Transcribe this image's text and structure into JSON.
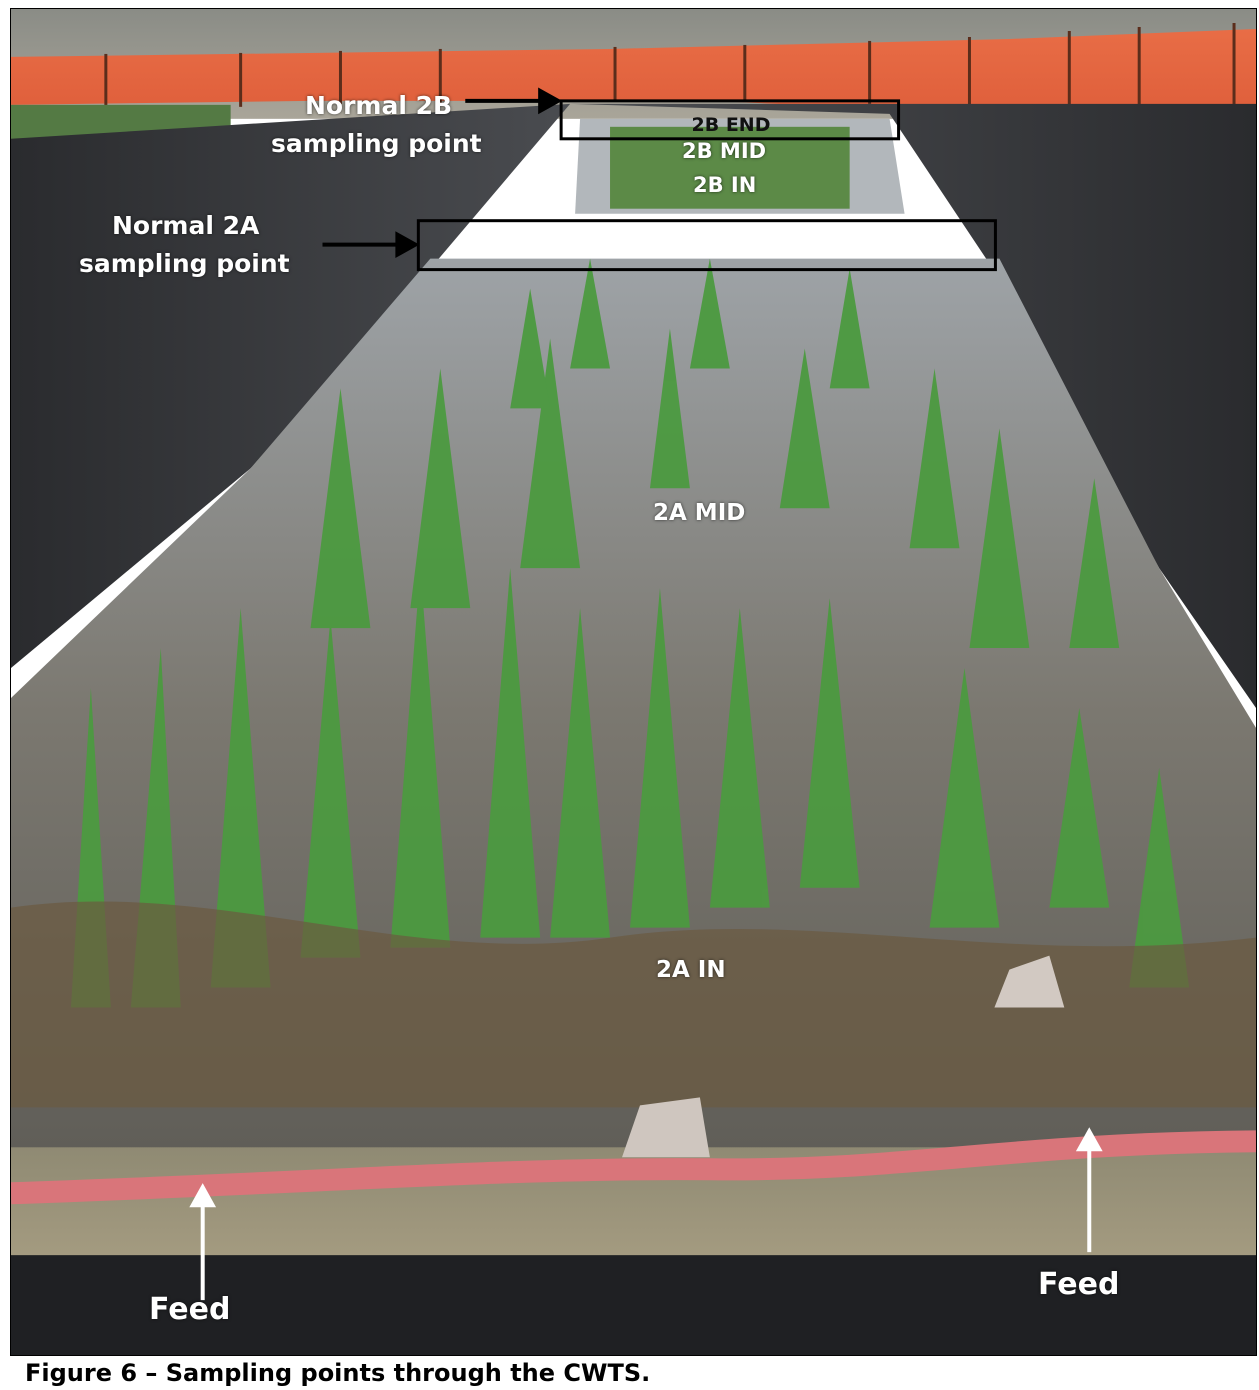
{
  "annotations": {
    "normal_2b": "Normal 2B",
    "normal_2b_sub": "sampling point",
    "normal_2a": "Normal 2A",
    "normal_2a_sub": "sampling point",
    "b_end": "2B END",
    "b_mid": "2B MID",
    "b_in": "2B IN",
    "a_mid": "2A MID",
    "a_in": "2A IN",
    "feed_left": "Feed",
    "feed_right": "Feed"
  },
  "caption": "Figure 6 – Sampling points through the CWTS.",
  "colors": {
    "safety_fence": "#e8562f",
    "liner": "#2d2e31",
    "plants": "#4a9a3e",
    "hose": "#d26b6f",
    "water": "#8e9398"
  }
}
